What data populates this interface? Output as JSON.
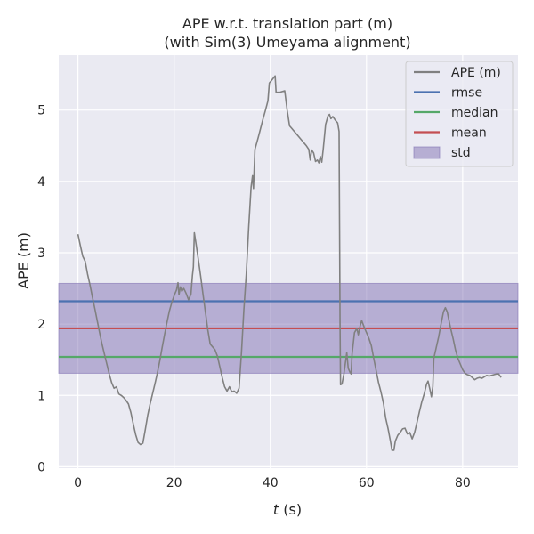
{
  "chart_data": {
    "type": "line",
    "title": "APE w.r.t. translation part (m)",
    "subtitle": "(with Sim(3) Umeyama alignment)",
    "xlabel_var": "t",
    "xlabel_unit": " (s)",
    "ylabel": "APE (m)",
    "xlim": [
      -4,
      91.5
    ],
    "ylim": [
      -0.02,
      5.77
    ],
    "xticks": [
      0,
      20,
      40,
      60,
      80
    ],
    "yticks": [
      0,
      1,
      2,
      3,
      4,
      5
    ],
    "grid": true,
    "legend_position": "top-right",
    "colors": {
      "background": "#eaeaf2",
      "grid": "#ffffff",
      "ape": "#808080",
      "rmse": "#4c72b0",
      "median": "#55a868",
      "mean": "#c44e52",
      "std_fill": "#8172b3"
    },
    "stats": {
      "rmse": 2.32,
      "median": 1.54,
      "mean": 1.94,
      "std_band": [
        1.31,
        2.57
      ]
    },
    "legend": [
      {
        "label": "APE (m)",
        "kind": "line",
        "color": "#808080"
      },
      {
        "label": "rmse",
        "kind": "line",
        "color": "#4c72b0"
      },
      {
        "label": "median",
        "kind": "line",
        "color": "#55a868"
      },
      {
        "label": "mean",
        "kind": "line",
        "color": "#c44e52"
      },
      {
        "label": "std",
        "kind": "patch",
        "color": "#8172b3"
      }
    ],
    "series": [
      {
        "name": "APE (m)",
        "points": [
          [
            0.0,
            3.26
          ],
          [
            0.5,
            3.1
          ],
          [
            1.0,
            2.95
          ],
          [
            1.5,
            2.88
          ],
          [
            2.0,
            2.7
          ],
          [
            2.5,
            2.55
          ],
          [
            3.0,
            2.38
          ],
          [
            3.5,
            2.22
          ],
          [
            4.0,
            2.05
          ],
          [
            4.5,
            1.88
          ],
          [
            5.0,
            1.72
          ],
          [
            5.5,
            1.58
          ],
          [
            6.0,
            1.44
          ],
          [
            6.5,
            1.3
          ],
          [
            7.0,
            1.18
          ],
          [
            7.5,
            1.1
          ],
          [
            8.0,
            1.12
          ],
          [
            8.5,
            1.02
          ],
          [
            9.0,
            1.0
          ],
          [
            9.5,
            0.97
          ],
          [
            10.0,
            0.93
          ],
          [
            10.5,
            0.88
          ],
          [
            11.0,
            0.76
          ],
          [
            11.5,
            0.6
          ],
          [
            12.0,
            0.45
          ],
          [
            12.5,
            0.34
          ],
          [
            13.0,
            0.31
          ],
          [
            13.5,
            0.33
          ],
          [
            14.0,
            0.52
          ],
          [
            14.5,
            0.72
          ],
          [
            15.0,
            0.88
          ],
          [
            15.5,
            1.02
          ],
          [
            16.0,
            1.16
          ],
          [
            16.5,
            1.31
          ],
          [
            17.0,
            1.48
          ],
          [
            17.5,
            1.67
          ],
          [
            18.0,
            1.85
          ],
          [
            18.5,
            2.02
          ],
          [
            19.0,
            2.18
          ],
          [
            19.5,
            2.3
          ],
          [
            20.0,
            2.4
          ],
          [
            20.5,
            2.48
          ],
          [
            20.8,
            2.58
          ],
          [
            21.0,
            2.41
          ],
          [
            21.3,
            2.52
          ],
          [
            21.6,
            2.46
          ],
          [
            22.0,
            2.5
          ],
          [
            22.5,
            2.43
          ],
          [
            23.0,
            2.34
          ],
          [
            23.5,
            2.42
          ],
          [
            23.8,
            2.68
          ],
          [
            24.0,
            2.8
          ],
          [
            24.2,
            3.28
          ],
          [
            24.5,
            3.15
          ],
          [
            25.0,
            2.92
          ],
          [
            25.5,
            2.68
          ],
          [
            26.0,
            2.42
          ],
          [
            26.5,
            2.17
          ],
          [
            27.0,
            1.92
          ],
          [
            27.5,
            1.72
          ],
          [
            28.0,
            1.68
          ],
          [
            28.5,
            1.64
          ],
          [
            29.0,
            1.55
          ],
          [
            29.5,
            1.4
          ],
          [
            30.0,
            1.25
          ],
          [
            30.5,
            1.12
          ],
          [
            31.0,
            1.06
          ],
          [
            31.5,
            1.12
          ],
          [
            32.0,
            1.05
          ],
          [
            32.5,
            1.06
          ],
          [
            33.0,
            1.03
          ],
          [
            33.5,
            1.1
          ],
          [
            34.0,
            1.6
          ],
          [
            34.5,
            2.2
          ],
          [
            35.0,
            2.7
          ],
          [
            35.5,
            3.35
          ],
          [
            36.0,
            3.92
          ],
          [
            36.3,
            4.08
          ],
          [
            36.5,
            3.9
          ],
          [
            36.8,
            4.45
          ],
          [
            37.5,
            4.62
          ],
          [
            38.0,
            4.75
          ],
          [
            38.5,
            4.88
          ],
          [
            39.0,
            5.0
          ],
          [
            39.5,
            5.13
          ],
          [
            39.8,
            5.38
          ],
          [
            40.3,
            5.42
          ],
          [
            41.0,
            5.48
          ],
          [
            41.2,
            5.25
          ],
          [
            42.0,
            5.25
          ],
          [
            43.0,
            5.27
          ],
          [
            43.5,
            5.0
          ],
          [
            44.0,
            4.78
          ],
          [
            44.5,
            4.74
          ],
          [
            45.0,
            4.7
          ],
          [
            45.5,
            4.66
          ],
          [
            46.0,
            4.62
          ],
          [
            46.5,
            4.58
          ],
          [
            47.0,
            4.54
          ],
          [
            47.5,
            4.5
          ],
          [
            48.0,
            4.45
          ],
          [
            48.3,
            4.3
          ],
          [
            48.6,
            4.44
          ],
          [
            49.0,
            4.4
          ],
          [
            49.4,
            4.28
          ],
          [
            49.8,
            4.3
          ],
          [
            50.1,
            4.26
          ],
          [
            50.4,
            4.35
          ],
          [
            50.7,
            4.27
          ],
          [
            51.0,
            4.45
          ],
          [
            51.5,
            4.8
          ],
          [
            52.0,
            4.92
          ],
          [
            52.3,
            4.94
          ],
          [
            52.6,
            4.88
          ],
          [
            53.0,
            4.91
          ],
          [
            53.5,
            4.86
          ],
          [
            54.0,
            4.82
          ],
          [
            54.3,
            4.7
          ],
          [
            54.5,
            2.0
          ],
          [
            54.6,
            1.15
          ],
          [
            54.9,
            1.16
          ],
          [
            55.3,
            1.3
          ],
          [
            55.6,
            1.45
          ],
          [
            55.9,
            1.6
          ],
          [
            56.2,
            1.38
          ],
          [
            56.6,
            1.32
          ],
          [
            56.8,
            1.3
          ],
          [
            57.0,
            1.58
          ],
          [
            57.5,
            1.88
          ],
          [
            58.0,
            1.94
          ],
          [
            58.3,
            1.85
          ],
          [
            58.7,
            1.98
          ],
          [
            59.0,
            2.05
          ],
          [
            59.5,
            1.96
          ],
          [
            60.0,
            1.88
          ],
          [
            60.5,
            1.8
          ],
          [
            61.0,
            1.7
          ],
          [
            61.5,
            1.52
          ],
          [
            62.0,
            1.35
          ],
          [
            62.5,
            1.18
          ],
          [
            63.0,
            1.05
          ],
          [
            63.5,
            0.9
          ],
          [
            64.0,
            0.68
          ],
          [
            64.5,
            0.53
          ],
          [
            65.0,
            0.35
          ],
          [
            65.3,
            0.23
          ],
          [
            65.7,
            0.23
          ],
          [
            66.0,
            0.36
          ],
          [
            66.5,
            0.44
          ],
          [
            67.0,
            0.48
          ],
          [
            67.5,
            0.53
          ],
          [
            68.0,
            0.54
          ],
          [
            68.5,
            0.46
          ],
          [
            69.0,
            0.48
          ],
          [
            69.5,
            0.39
          ],
          [
            70.0,
            0.48
          ],
          [
            70.5,
            0.62
          ],
          [
            71.0,
            0.77
          ],
          [
            71.5,
            0.91
          ],
          [
            72.0,
            1.02
          ],
          [
            72.5,
            1.16
          ],
          [
            72.8,
            1.2
          ],
          [
            73.2,
            1.08
          ],
          [
            73.5,
            0.98
          ],
          [
            73.8,
            1.12
          ],
          [
            74.0,
            1.52
          ],
          [
            74.5,
            1.67
          ],
          [
            75.0,
            1.82
          ],
          [
            75.5,
            2.0
          ],
          [
            76.0,
            2.17
          ],
          [
            76.4,
            2.23
          ],
          [
            76.8,
            2.17
          ],
          [
            77.0,
            2.1
          ],
          [
            77.5,
            1.94
          ],
          [
            78.0,
            1.8
          ],
          [
            78.5,
            1.64
          ],
          [
            79.0,
            1.52
          ],
          [
            79.5,
            1.44
          ],
          [
            80.0,
            1.36
          ],
          [
            80.5,
            1.31
          ],
          [
            81.0,
            1.29
          ],
          [
            81.5,
            1.28
          ],
          [
            82.0,
            1.25
          ],
          [
            82.5,
            1.22
          ],
          [
            83.0,
            1.24
          ],
          [
            83.5,
            1.25
          ],
          [
            84.0,
            1.24
          ],
          [
            84.5,
            1.26
          ],
          [
            85.0,
            1.28
          ],
          [
            85.5,
            1.27
          ],
          [
            86.0,
            1.28
          ],
          [
            86.5,
            1.29
          ],
          [
            87.0,
            1.3
          ],
          [
            87.5,
            1.3
          ],
          [
            88.0,
            1.25
          ]
        ]
      }
    ]
  }
}
